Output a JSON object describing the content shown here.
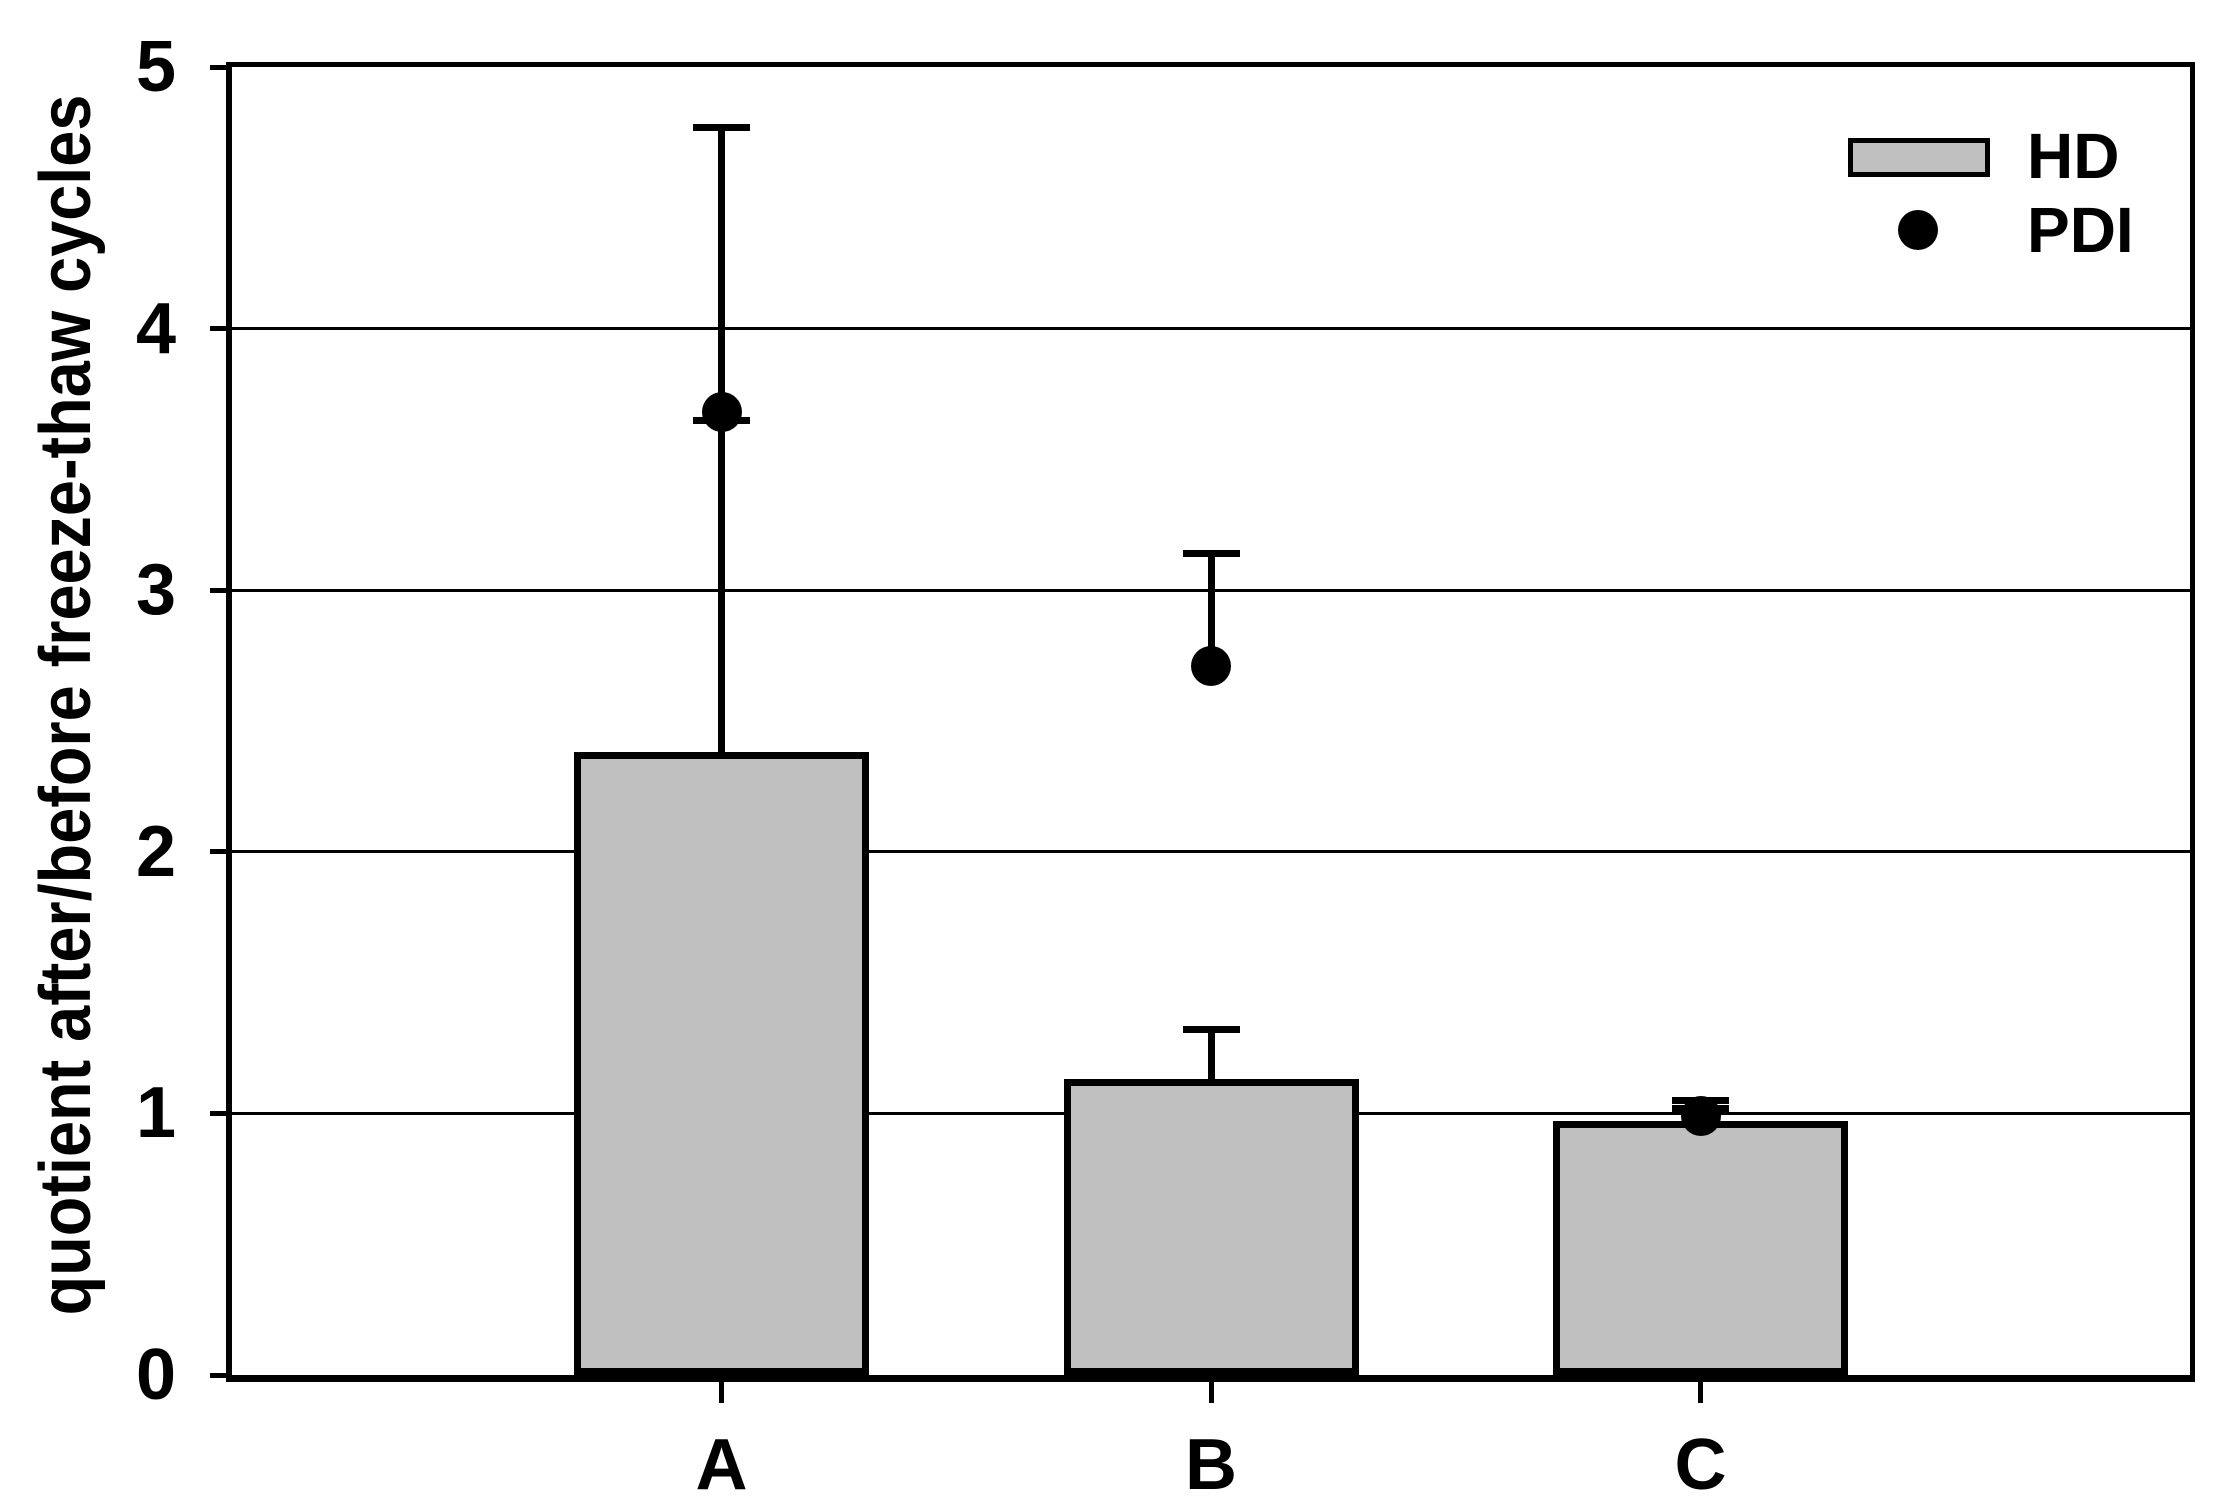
{
  "chart_data": {
    "type": "bar",
    "categories": [
      "A",
      "B",
      "C"
    ],
    "series": [
      {
        "name": "HD",
        "kind": "bar",
        "color": "#c0c0c0",
        "values": [
          2.38,
          1.13,
          0.97
        ],
        "err_up": [
          2.39,
          0.19,
          0.08
        ],
        "err_down": [
          0,
          0,
          0
        ]
      },
      {
        "name": "PDI",
        "kind": "scatter",
        "color": "#000000",
        "values": [
          3.68,
          2.71,
          0.99
        ],
        "err_up": [
          0,
          0.43,
          0.03
        ],
        "err_down": [
          0.03,
          0,
          0
        ]
      }
    ],
    "title": "",
    "xlabel": "",
    "ylabel": "quotient after/before freeze-thaw cycles",
    "ylim": [
      0,
      5
    ],
    "yticks": [
      0,
      1,
      2,
      3,
      4,
      5
    ],
    "grid": "horizontal gridlines at integer ticks",
    "legend_position": "top-right inside plot",
    "axis_color": "#000000",
    "background": "#ffffff"
  }
}
